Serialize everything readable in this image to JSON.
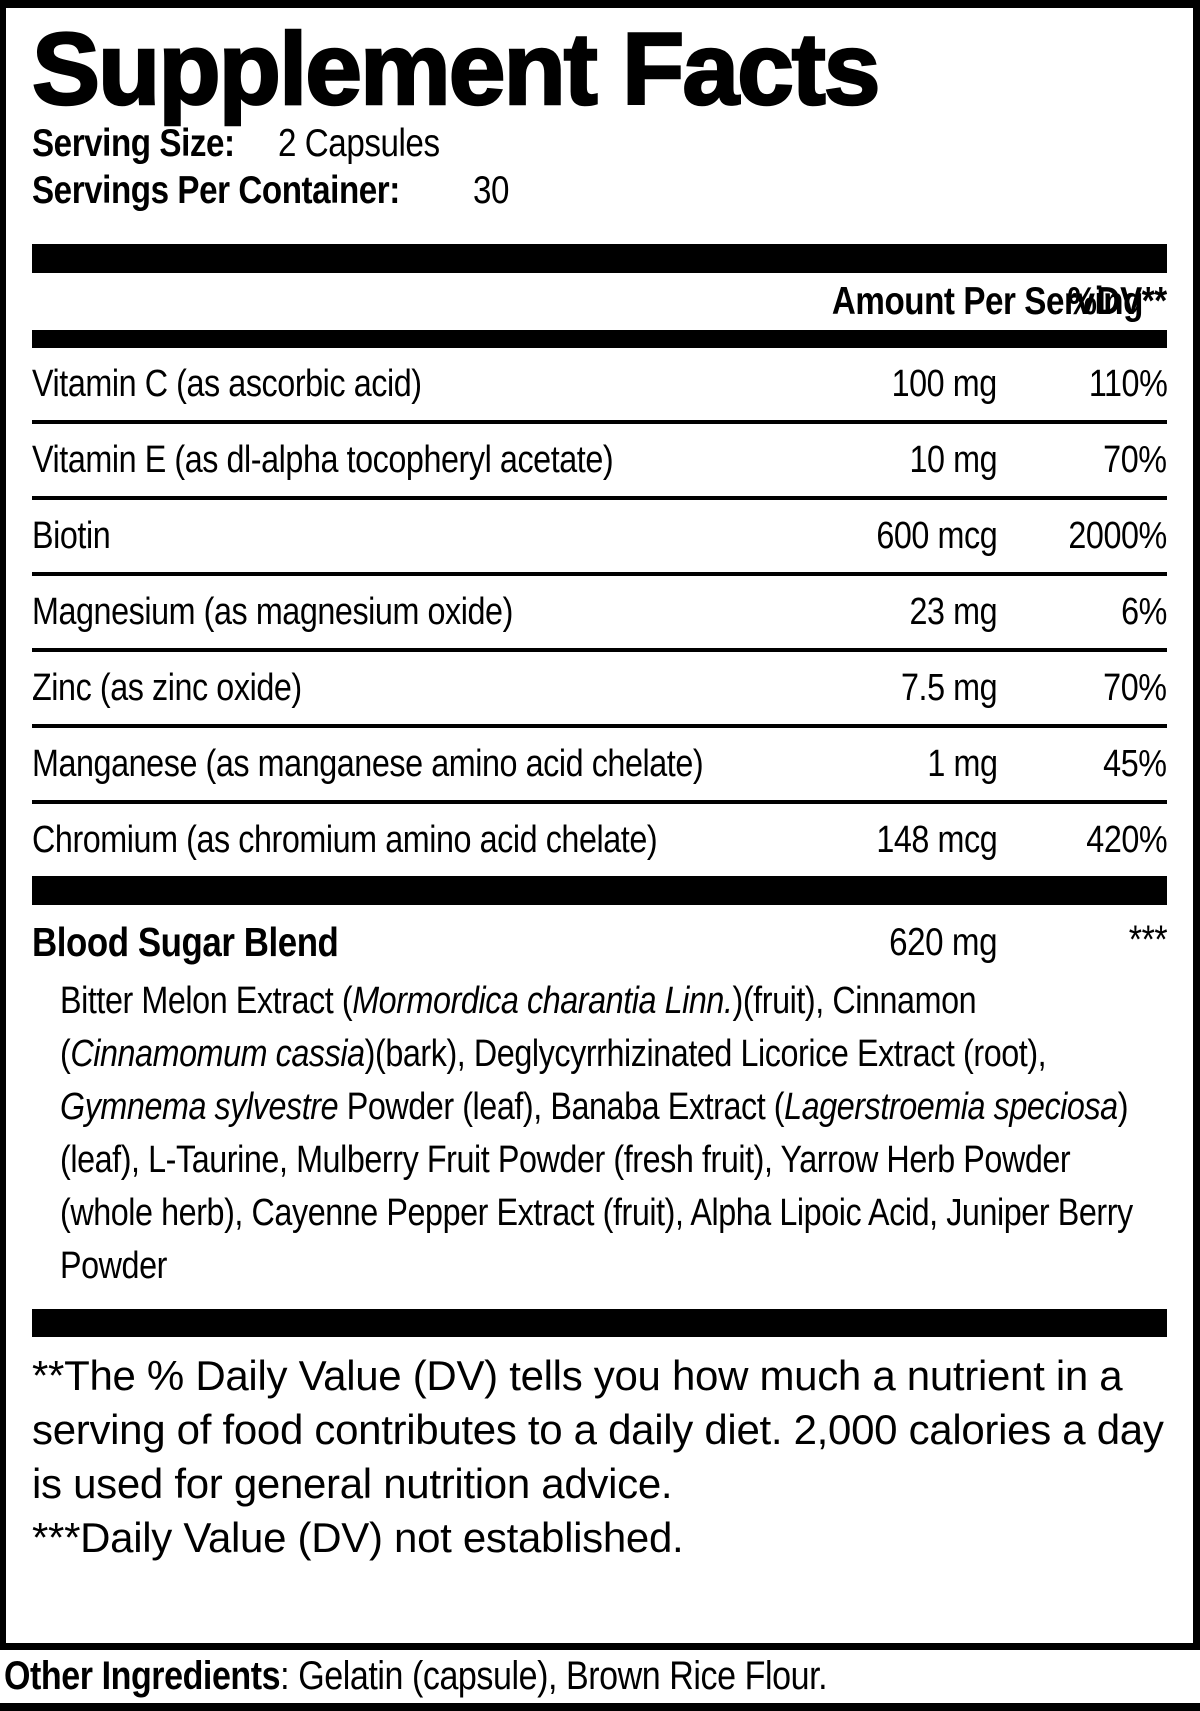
{
  "title": "Supplement Facts",
  "serving": {
    "size_label": "Serving Size:",
    "size_value": "2 Capsules",
    "container_label": "Servings Per Container:",
    "container_value": "30"
  },
  "table": {
    "amount_header": "Amount Per Serving",
    "dv_header": "%DV**",
    "rows": [
      {
        "name": "Vitamin C (as ascorbic acid)",
        "amount": "100 mg",
        "dv": "110%"
      },
      {
        "name": "Vitamin E (as dl-alpha tocopheryl acetate)",
        "amount": "10 mg",
        "dv": "70%"
      },
      {
        "name": "Biotin",
        "amount": "600 mcg",
        "dv": "2000%"
      },
      {
        "name": "Magnesium (as magnesium oxide)",
        "amount": "23 mg",
        "dv": "6%"
      },
      {
        "name": "Zinc (as zinc oxide)",
        "amount": "7.5 mg",
        "dv": "70%"
      },
      {
        "name": "Manganese (as manganese amino acid chelate)",
        "amount": "1 mg",
        "dv": "45%"
      },
      {
        "name": "Chromium (as chromium amino acid chelate)",
        "amount": "148 mcg",
        "dv": "420%"
      }
    ]
  },
  "blend": {
    "name": "Blood Sugar Blend",
    "amount": "620 mg",
    "dv": "***",
    "ingredients_segments": [
      {
        "text": "Bitter Melon Extract (",
        "italic": false
      },
      {
        "text": "Mormordica charantia Linn.",
        "italic": true
      },
      {
        "text": ")(fruit), Cinnamon (",
        "italic": false
      },
      {
        "text": "Cinnamomum cassia",
        "italic": true
      },
      {
        "text": ")(bark), Deglycyrrhizinated Licorice Extract (root), ",
        "italic": false
      },
      {
        "text": "Gymnema sylvestre",
        "italic": true
      },
      {
        "text": " Powder (leaf), Banaba Extract (",
        "italic": false
      },
      {
        "text": "Lagerstroemia speciosa",
        "italic": true
      },
      {
        "text": ")(leaf), L-Taurine, Mulberry Fruit Powder (fresh fruit), Yarrow Herb Powder (whole herb), Cayenne Pepper Extract (fruit), Alpha Lipoic Acid, Juniper Berry Powder",
        "italic": false
      }
    ]
  },
  "footnotes": {
    "daily_value": "**The % Daily Value (DV) tells you how much a nutrient in a serving of food contributes to a daily diet. 2,000 calories a day is used for general nutrition advice.",
    "not_established": "***Daily Value (DV) not established."
  },
  "other_ingredients": {
    "label": "Other Ingredients",
    "value": ": Gelatin (capsule), Brown Rice Flour."
  },
  "colors": {
    "ink": "#000000",
    "paper": "#ffffff"
  }
}
